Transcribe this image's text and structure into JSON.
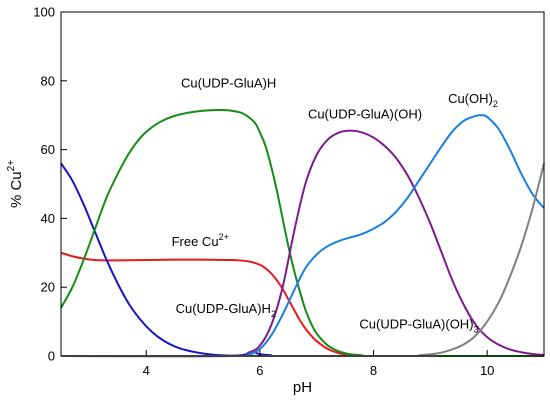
{
  "chart_data": {
    "type": "line",
    "title": "",
    "xlabel": "pH",
    "ylabel": {
      "base": "% Cu",
      "sup": "2+"
    },
    "xlim": [
      2.5,
      11
    ],
    "ylim": [
      0,
      100
    ],
    "xticks": [
      4,
      6,
      8,
      10
    ],
    "yticks": [
      0,
      20,
      40,
      60,
      80,
      100
    ],
    "grid": false,
    "legend": "none",
    "series": [
      {
        "key": "free",
        "label": {
          "base": "Free Cu",
          "sup": "2+",
          "sub": ""
        },
        "color": "#e8191c",
        "x": [
          2.5,
          2.7,
          2.9,
          3.1,
          3.3,
          3.5,
          4.0,
          4.5,
          5.0,
          5.5,
          5.8,
          6.0,
          6.1,
          6.2,
          6.3,
          6.4,
          6.5,
          6.6,
          6.7,
          6.8,
          6.9,
          7.0,
          7.2,
          7.4,
          7.6,
          7.8,
          8.0,
          11.0
        ],
        "y": [
          30,
          29,
          28.3,
          27.9,
          27.8,
          27.8,
          27.9,
          28.0,
          28.0,
          27.9,
          27.5,
          26.5,
          25.5,
          24.0,
          22.0,
          19.5,
          16.5,
          13.5,
          10.5,
          8.0,
          6.0,
          4.3,
          2.0,
          0.8,
          0.3,
          0.1,
          0,
          0
        ]
      },
      {
        "key": "h2",
        "label": {
          "base": "Cu(UDP-GluA)H",
          "sup": "",
          "sub": "2"
        },
        "color": "#1515c8",
        "x": [
          2.5,
          2.7,
          2.9,
          3.1,
          3.3,
          3.5,
          3.7,
          3.9,
          4.1,
          4.3,
          4.5,
          4.7,
          4.9,
          5.1,
          5.3,
          5.5,
          5.7,
          5.9,
          6.0,
          6.2,
          6.5,
          11.0
        ],
        "y": [
          56,
          51,
          44,
          36,
          28,
          21,
          15,
          10.5,
          7,
          4.5,
          2.8,
          1.7,
          1.0,
          0.5,
          0.2,
          0.1,
          0.3,
          1.0,
          0.5,
          0.2,
          0,
          0
        ]
      },
      {
        "key": "h",
        "label": {
          "base": "Cu(UDP-GluA)H",
          "sup": "",
          "sub": ""
        },
        "color": "#168c16",
        "x": [
          2.5,
          2.7,
          2.9,
          3.1,
          3.3,
          3.5,
          3.7,
          3.9,
          4.1,
          4.3,
          4.5,
          4.7,
          4.9,
          5.1,
          5.3,
          5.5,
          5.7,
          5.9,
          6.0,
          6.1,
          6.2,
          6.3,
          6.4,
          6.5,
          6.6,
          6.7,
          6.8,
          6.9,
          7.0,
          7.2,
          7.4,
          7.6,
          7.8,
          8.0,
          11.0
        ],
        "y": [
          14,
          20,
          28,
          37,
          46,
          53,
          59,
          63.5,
          66.5,
          68.5,
          69.8,
          70.6,
          71.1,
          71.4,
          71.5,
          71.3,
          70.5,
          68,
          65,
          61,
          55,
          48,
          40,
          32,
          25,
          19,
          13.5,
          9.5,
          6.5,
          3,
          1.3,
          0.5,
          0.2,
          0,
          0
        ]
      },
      {
        "key": "oh",
        "label": {
          "base": "Cu(UDP-GluA)(OH)",
          "sup": "",
          "sub": ""
        },
        "color": "#7d1a8c",
        "x": [
          2.5,
          5.5,
          5.8,
          6.0,
          6.2,
          6.4,
          6.6,
          6.8,
          7.0,
          7.2,
          7.4,
          7.6,
          7.8,
          8.0,
          8.2,
          8.4,
          8.6,
          8.8,
          9.0,
          9.2,
          9.4,
          9.6,
          9.8,
          10.0,
          10.2,
          10.4,
          10.6,
          10.8,
          11.0
        ],
        "y": [
          0,
          0,
          1,
          3,
          9,
          20,
          36,
          50,
          58.5,
          63,
          65,
          65.5,
          65,
          63.5,
          61,
          57.5,
          52.5,
          46,
          38.5,
          30,
          21.5,
          14.5,
          9,
          5.5,
          3.3,
          1.9,
          1.1,
          0.6,
          0.3
        ]
      },
      {
        "key": "oh2",
        "label": {
          "base": "Cu(OH)",
          "sup": "",
          "sub": "2"
        },
        "color": "#1a7fe0",
        "x": [
          2.5,
          5.6,
          5.8,
          6.0,
          6.2,
          6.4,
          6.6,
          6.8,
          7.0,
          7.2,
          7.4,
          7.6,
          7.8,
          8.0,
          8.2,
          8.4,
          8.6,
          8.8,
          9.0,
          9.2,
          9.4,
          9.6,
          9.8,
          9.9,
          10.0,
          10.2,
          10.4,
          10.6,
          10.8,
          11.0
        ],
        "y": [
          0,
          0,
          0.5,
          2,
          6,
          12,
          19,
          25.5,
          29.5,
          32,
          33.5,
          34.5,
          35.5,
          37,
          39,
          42,
          46,
          51,
          56,
          61,
          65.5,
          68.5,
          69.8,
          70,
          69.5,
          66,
          60,
          53,
          47,
          43
        ]
      },
      {
        "key": "oh3",
        "label": {
          "base": "Cu(UDP-GluA)(OH)",
          "sup": "",
          "sub": "3"
        },
        "color": "#808080",
        "x": [
          2.5,
          8.6,
          8.8,
          9.0,
          9.2,
          9.4,
          9.6,
          9.8,
          10.0,
          10.2,
          10.4,
          10.6,
          10.8,
          11.0
        ],
        "y": [
          0,
          0,
          0.2,
          0.5,
          1.0,
          2.0,
          3.5,
          6,
          10,
          15.5,
          23,
          32,
          43,
          56
        ]
      }
    ],
    "annotations": [
      {
        "series": "h",
        "at": [
          5.45,
          78.0
        ]
      },
      {
        "series": "free",
        "at": [
          4.95,
          32.0
        ]
      },
      {
        "series": "h2",
        "at": [
          5.4,
          12.5
        ]
      },
      {
        "series": "oh",
        "at": [
          7.85,
          69.0
        ]
      },
      {
        "series": "oh2",
        "at": [
          9.75,
          73.5
        ]
      },
      {
        "series": "oh3",
        "at": [
          8.8,
          8.0
        ]
      }
    ]
  }
}
